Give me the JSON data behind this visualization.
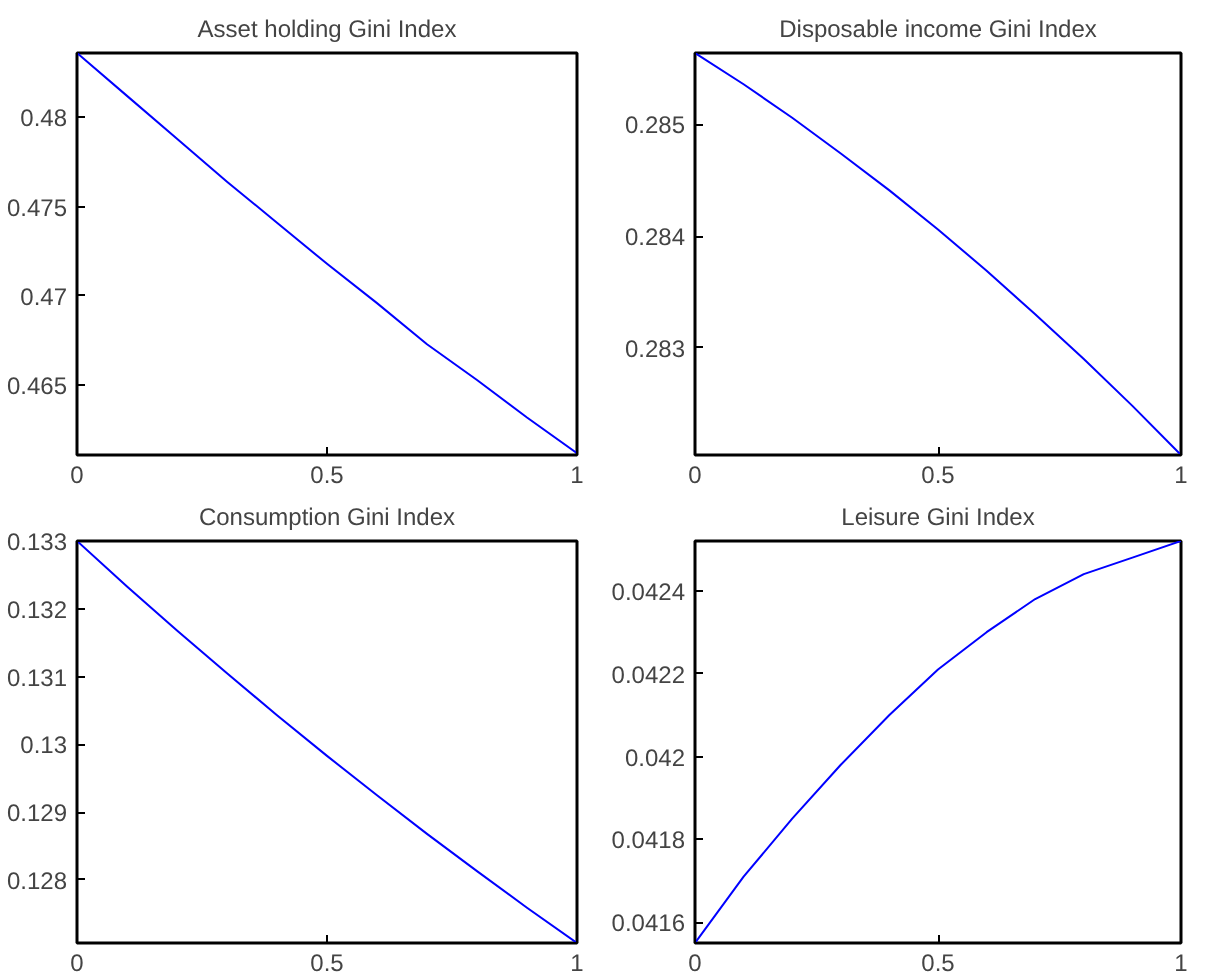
{
  "chart_data": [
    {
      "type": "line",
      "title": "Asset holding Gini Index",
      "x": [
        0,
        0.1,
        0.2,
        0.3,
        0.4,
        0.5,
        0.6,
        0.7,
        0.8,
        0.9,
        1
      ],
      "color": "#0000ff",
      "grid": false,
      "values": [
        0.4836,
        0.4812,
        0.4788,
        0.4764,
        0.4741,
        0.4718,
        0.4696,
        0.4673,
        0.4653,
        0.4632,
        0.4612
      ],
      "xlim": [
        0,
        1
      ],
      "ylim": [
        0.4611,
        0.4836
      ],
      "xticks": [
        0,
        0.5,
        1
      ],
      "yticks": [
        0.465,
        0.47,
        0.475,
        0.48
      ]
    },
    {
      "type": "line",
      "title": "Disposable income Gini Index",
      "x": [
        0,
        0.1,
        0.2,
        0.3,
        0.4,
        0.5,
        0.6,
        0.7,
        0.8,
        0.9,
        1
      ],
      "color": "#0000ff",
      "grid": false,
      "values": [
        0.28564,
        0.28536,
        0.28506,
        0.28474,
        0.28441,
        0.28406,
        0.28369,
        0.2833,
        0.2829,
        0.28248,
        0.28204
      ],
      "xlim": [
        0,
        1
      ],
      "ylim": [
        0.28204,
        0.28564
      ],
      "xticks": [
        0,
        0.5,
        1
      ],
      "yticks": [
        0.283,
        0.284,
        0.285
      ]
    },
    {
      "type": "line",
      "title": "Consumption Gini Index",
      "x": [
        0,
        0.1,
        0.2,
        0.3,
        0.4,
        0.5,
        0.6,
        0.7,
        0.8,
        0.9,
        1
      ],
      "color": "#0000ff",
      "grid": false,
      "values": [
        0.133,
        0.13233,
        0.13168,
        0.13105,
        0.13043,
        0.12983,
        0.12925,
        0.12868,
        0.12813,
        0.12759,
        0.12707
      ],
      "xlim": [
        0,
        1
      ],
      "ylim": [
        0.12707,
        0.133
      ],
      "xticks": [
        0,
        0.5,
        1
      ],
      "yticks": [
        0.128,
        0.129,
        0.13,
        0.131,
        0.132,
        0.133
      ]
    },
    {
      "type": "line",
      "title": "Leisure Gini Index",
      "x": [
        0,
        0.1,
        0.2,
        0.3,
        0.4,
        0.5,
        0.6,
        0.7,
        0.8,
        0.9,
        1
      ],
      "color": "#0000ff",
      "grid": false,
      "values": [
        0.04155,
        0.04171,
        0.04185,
        0.04198,
        0.0421,
        0.04221,
        0.0423,
        0.04238,
        0.04244,
        0.04248,
        0.04252
      ],
      "xlim": [
        0,
        1
      ],
      "ylim": [
        0.04155,
        0.04252
      ],
      "xticks": [
        0,
        0.5,
        1
      ],
      "yticks": [
        0.0416,
        0.0418,
        0.042,
        0.0422,
        0.0424
      ]
    }
  ]
}
